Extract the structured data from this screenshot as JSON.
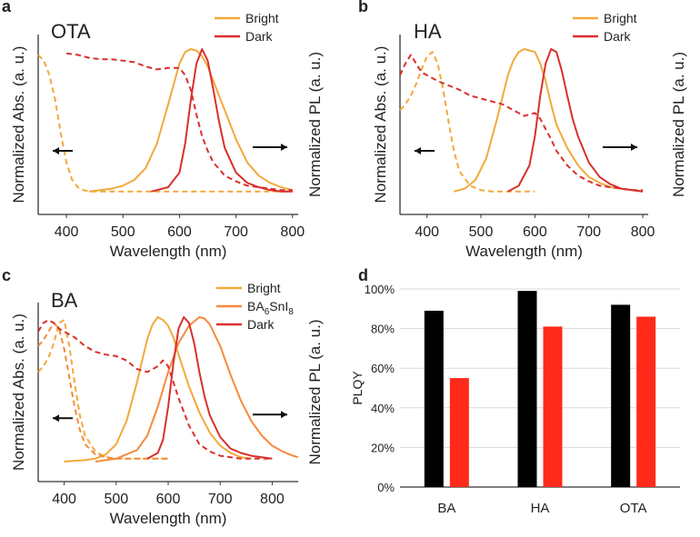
{
  "colors": {
    "bright": "#f2a93b",
    "ba6snl8": "#f58a3d",
    "dark": "#d9302c",
    "bar_black": "#000000",
    "bar_red": "#ff2a1a",
    "axis": "#333333",
    "grid": "#d9d9d9"
  },
  "chart_data": [
    {
      "panel": "a",
      "type": "line",
      "title": "OTA",
      "xlabel": "Wavelength (nm)",
      "ylabel_left": "Normalized Abs. (a. u.)",
      "ylabel_right": "Normalized PL (a. u.)",
      "xlim": [
        350,
        810
      ],
      "ylim": [
        0,
        1
      ],
      "xticks": [
        400,
        500,
        600,
        700,
        800
      ],
      "legend": [
        "Bright",
        "Dark"
      ],
      "legend_position": "top-right",
      "arrows": [
        "left",
        "right"
      ],
      "series": [
        {
          "name": "Bright",
          "kind": "absorption",
          "style": "dashed",
          "color_key": "bright",
          "x": [
            350,
            360,
            370,
            380,
            390,
            400,
            410,
            420,
            430,
            440,
            460,
            500,
            550,
            600,
            650,
            700,
            750,
            800
          ],
          "y": [
            0.96,
            0.92,
            0.82,
            0.65,
            0.42,
            0.22,
            0.1,
            0.05,
            0.03,
            0.02,
            0.02,
            0.02,
            0.02,
            0.02,
            0.02,
            0.02,
            0.02,
            0.02
          ]
        },
        {
          "name": "Bright",
          "kind": "PL",
          "style": "solid",
          "color_key": "bright",
          "x": [
            440,
            460,
            480,
            500,
            520,
            540,
            560,
            580,
            600,
            610,
            620,
            630,
            640,
            650,
            660,
            680,
            700,
            720,
            740,
            760,
            780,
            800
          ],
          "y": [
            0.02,
            0.03,
            0.04,
            0.06,
            0.1,
            0.18,
            0.35,
            0.62,
            0.9,
            0.98,
            1.0,
            0.99,
            0.95,
            0.88,
            0.78,
            0.58,
            0.38,
            0.22,
            0.13,
            0.08,
            0.05,
            0.03
          ]
        },
        {
          "name": "Dark",
          "kind": "absorption",
          "style": "dashed",
          "color_key": "dark",
          "x": [
            400,
            420,
            440,
            460,
            480,
            500,
            520,
            540,
            560,
            580,
            600,
            610,
            620,
            630,
            640,
            650,
            660,
            680,
            700,
            720,
            740,
            760,
            780,
            800
          ],
          "y": [
            0.97,
            0.96,
            0.94,
            0.93,
            0.93,
            0.92,
            0.91,
            0.88,
            0.86,
            0.87,
            0.87,
            0.82,
            0.72,
            0.55,
            0.4,
            0.3,
            0.22,
            0.13,
            0.09,
            0.06,
            0.05,
            0.04,
            0.03,
            0.03
          ]
        },
        {
          "name": "Dark",
          "kind": "PL",
          "style": "solid",
          "color_key": "dark",
          "x": [
            550,
            580,
            600,
            610,
            620,
            630,
            640,
            650,
            660,
            670,
            680,
            700,
            720,
            740,
            760,
            780,
            800
          ],
          "y": [
            0.02,
            0.05,
            0.15,
            0.35,
            0.65,
            0.9,
            1.0,
            0.92,
            0.72,
            0.5,
            0.32,
            0.15,
            0.08,
            0.05,
            0.03,
            0.02,
            0.02
          ]
        }
      ]
    },
    {
      "panel": "b",
      "type": "line",
      "title": "HA",
      "xlabel": "Wavelength (nm)",
      "ylabel_left": "Normalized Abs. (a. u.)",
      "ylabel_right": "Normalized PL (a. u.)",
      "xlim": [
        350,
        810
      ],
      "ylim": [
        0,
        1
      ],
      "xticks": [
        400,
        500,
        600,
        700,
        800
      ],
      "legend": [
        "Bright",
        "Dark"
      ],
      "legend_position": "top-right",
      "arrows": [
        "left",
        "right"
      ],
      "series": [
        {
          "name": "Bright",
          "kind": "absorption",
          "style": "dashed",
          "color_key": "bright",
          "x": [
            350,
            360,
            370,
            380,
            390,
            400,
            410,
            420,
            430,
            440,
            450,
            460,
            480,
            500,
            520,
            540,
            560,
            580,
            600
          ],
          "y": [
            0.58,
            0.62,
            0.68,
            0.76,
            0.86,
            0.95,
            0.98,
            0.9,
            0.72,
            0.5,
            0.3,
            0.16,
            0.06,
            0.03,
            0.02,
            0.02,
            0.02,
            0.02,
            0.02
          ]
        },
        {
          "name": "Bright",
          "kind": "PL",
          "style": "solid",
          "color_key": "bright",
          "x": [
            450,
            470,
            490,
            510,
            530,
            550,
            560,
            570,
            580,
            590,
            600,
            610,
            620,
            630,
            640,
            660,
            680,
            700,
            720,
            740,
            760,
            780,
            800
          ],
          "y": [
            0.02,
            0.04,
            0.1,
            0.25,
            0.52,
            0.82,
            0.92,
            0.98,
            1.0,
            0.99,
            0.98,
            0.9,
            0.78,
            0.62,
            0.48,
            0.32,
            0.2,
            0.12,
            0.08,
            0.05,
            0.04,
            0.03,
            0.02
          ]
        },
        {
          "name": "Dark",
          "kind": "absorption",
          "style": "dashed",
          "color_key": "dark",
          "x": [
            350,
            360,
            370,
            380,
            390,
            400,
            420,
            440,
            460,
            480,
            500,
            520,
            540,
            560,
            580,
            600,
            610,
            620,
            630,
            640,
            660,
            680,
            700,
            720,
            740,
            760,
            780,
            800
          ],
          "y": [
            0.82,
            0.9,
            0.96,
            0.9,
            0.84,
            0.82,
            0.78,
            0.75,
            0.72,
            0.68,
            0.66,
            0.64,
            0.62,
            0.58,
            0.54,
            0.56,
            0.52,
            0.45,
            0.38,
            0.3,
            0.2,
            0.13,
            0.09,
            0.06,
            0.05,
            0.04,
            0.03,
            0.03
          ]
        },
        {
          "name": "Dark",
          "kind": "PL",
          "style": "solid",
          "color_key": "dark",
          "x": [
            550,
            570,
            590,
            600,
            610,
            620,
            630,
            640,
            650,
            660,
            670,
            680,
            700,
            720,
            740,
            760,
            780,
            800
          ],
          "y": [
            0.02,
            0.06,
            0.2,
            0.4,
            0.68,
            0.9,
            1.0,
            0.98,
            0.85,
            0.68,
            0.52,
            0.4,
            0.22,
            0.12,
            0.07,
            0.04,
            0.03,
            0.02
          ]
        }
      ]
    },
    {
      "panel": "c",
      "type": "line",
      "title": "BA",
      "xlabel": "Wavelength (nm)",
      "ylabel_left": "Normalized Abs. (a. u.)",
      "ylabel_right": "Normalized PL (a. u.)",
      "xlim": [
        350,
        850
      ],
      "ylim": [
        0,
        1
      ],
      "xticks": [
        400,
        500,
        600,
        700,
        800
      ],
      "legend": [
        "Bright",
        "BA6SnI8",
        "Dark"
      ],
      "legend_position": "top-right",
      "arrows": [
        "left",
        "right"
      ],
      "series": [
        {
          "name": "Bright",
          "kind": "absorption",
          "style": "dashed",
          "color_key": "bright",
          "x": [
            350,
            360,
            370,
            380,
            390,
            400,
            410,
            420,
            430,
            440,
            460,
            480,
            500,
            520,
            540,
            560,
            580,
            600
          ],
          "y": [
            0.62,
            0.66,
            0.72,
            0.82,
            0.96,
            0.98,
            0.8,
            0.55,
            0.32,
            0.18,
            0.07,
            0.03,
            0.02,
            0.02,
            0.02,
            0.02,
            0.02,
            0.02
          ]
        },
        {
          "name": "Bright",
          "kind": "PL",
          "style": "solid",
          "color_key": "bright",
          "x": [
            400,
            440,
            460,
            480,
            500,
            520,
            540,
            560,
            570,
            580,
            590,
            600,
            610,
            620,
            640,
            660,
            680,
            700,
            720,
            740,
            760
          ],
          "y": [
            0.0,
            0.01,
            0.02,
            0.05,
            0.12,
            0.28,
            0.55,
            0.85,
            0.95,
            1.0,
            0.98,
            0.94,
            0.86,
            0.74,
            0.52,
            0.34,
            0.2,
            0.11,
            0.06,
            0.03,
            0.02
          ]
        },
        {
          "name": "BA6SnI8",
          "kind": "absorption",
          "style": "dashed",
          "color_key": "ba6snl8",
          "x": [
            350,
            360,
            370,
            380,
            390,
            400,
            410,
            420,
            430,
            440,
            460,
            480,
            500,
            520,
            540,
            560,
            580,
            600
          ],
          "y": [
            0.8,
            0.84,
            0.9,
            0.96,
            0.92,
            0.78,
            0.58,
            0.38,
            0.22,
            0.12,
            0.05,
            0.03,
            0.02,
            0.02,
            0.02,
            0.02,
            0.02,
            0.02
          ]
        },
        {
          "name": "BA6SnI8",
          "kind": "PL",
          "style": "solid",
          "color_key": "ba6snl8",
          "x": [
            460,
            500,
            540,
            560,
            580,
            600,
            620,
            640,
            660,
            670,
            680,
            700,
            720,
            740,
            760,
            780,
            800,
            820,
            840,
            850
          ],
          "y": [
            0.0,
            0.02,
            0.08,
            0.18,
            0.38,
            0.62,
            0.82,
            0.94,
            1.0,
            0.99,
            0.95,
            0.8,
            0.6,
            0.42,
            0.28,
            0.18,
            0.11,
            0.07,
            0.04,
            0.03
          ]
        },
        {
          "name": "Dark",
          "kind": "absorption",
          "style": "dashed",
          "color_key": "dark",
          "x": [
            350,
            360,
            370,
            380,
            390,
            400,
            420,
            440,
            460,
            480,
            500,
            520,
            540,
            560,
            580,
            590,
            600,
            610,
            620,
            640,
            660,
            680,
            700,
            720,
            740,
            760,
            780,
            800
          ],
          "y": [
            0.9,
            0.96,
            0.98,
            0.96,
            0.92,
            0.9,
            0.86,
            0.8,
            0.76,
            0.74,
            0.73,
            0.7,
            0.64,
            0.62,
            0.66,
            0.7,
            0.66,
            0.55,
            0.44,
            0.25,
            0.12,
            0.07,
            0.04,
            0.03,
            0.02,
            0.02,
            0.02,
            0.02
          ]
        },
        {
          "name": "Dark",
          "kind": "PL",
          "style": "solid",
          "color_key": "dark",
          "x": [
            560,
            580,
            590,
            600,
            610,
            620,
            630,
            640,
            650,
            660,
            670,
            680,
            700,
            720,
            740,
            760,
            780,
            800
          ],
          "y": [
            0.02,
            0.06,
            0.15,
            0.38,
            0.68,
            0.92,
            1.0,
            0.96,
            0.82,
            0.62,
            0.45,
            0.32,
            0.17,
            0.09,
            0.06,
            0.04,
            0.03,
            0.02
          ]
        }
      ]
    },
    {
      "panel": "d",
      "type": "bar",
      "title": "",
      "xlabel": "",
      "ylabel": "PLQY",
      "ylim": [
        0,
        100
      ],
      "yticks": [
        0,
        20,
        40,
        60,
        80,
        100
      ],
      "ytick_labels": [
        "0%",
        "20%",
        "40%",
        "60%",
        "80%",
        "100%"
      ],
      "grid": true,
      "categories": [
        "BA",
        "HA",
        "OTA"
      ],
      "series": [
        {
          "color_key": "bar_black",
          "values": [
            89,
            99,
            92
          ]
        },
        {
          "color_key": "bar_red",
          "values": [
            55,
            81,
            86
          ]
        }
      ]
    }
  ]
}
